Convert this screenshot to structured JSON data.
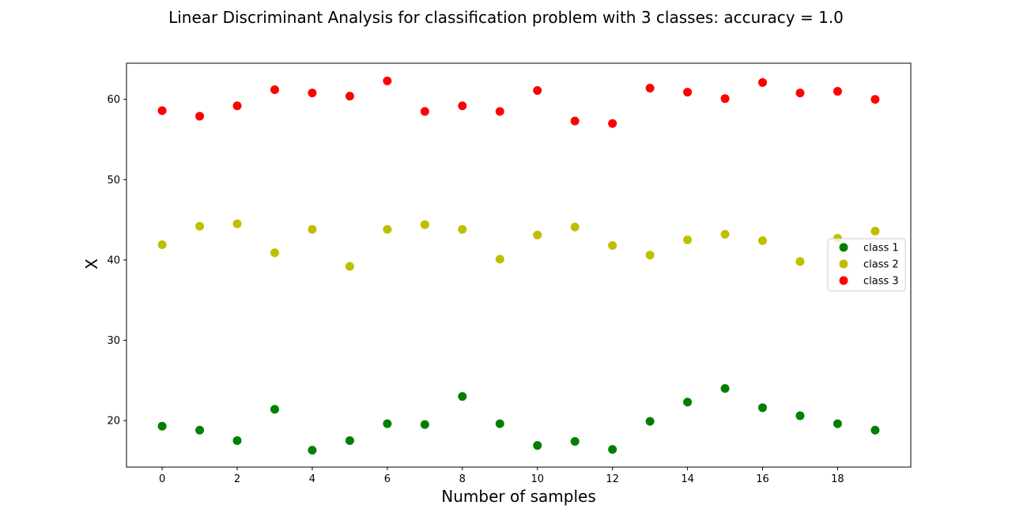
{
  "chart_data": {
    "type": "scatter",
    "title": "Linear Discriminant Analysis for classification problem with 3 classes: accuracy = 1.0",
    "xlabel": "Number of samples",
    "ylabel": "X",
    "xlim": [
      -0.95,
      19.95
    ],
    "ylim": [
      14.2,
      64.5
    ],
    "xticks": [
      0,
      2,
      4,
      6,
      8,
      10,
      12,
      14,
      16,
      18
    ],
    "yticks": [
      20,
      30,
      40,
      50,
      60
    ],
    "grid": false,
    "legend_position": "center-right",
    "x": [
      0,
      1,
      2,
      3,
      4,
      5,
      6,
      7,
      8,
      9,
      10,
      11,
      12,
      13,
      14,
      15,
      16,
      17,
      18,
      19
    ],
    "series": [
      {
        "name": "class 1",
        "color": "#008000",
        "values": [
          19.3,
          18.8,
          17.5,
          21.4,
          16.3,
          17.5,
          19.6,
          19.5,
          23.0,
          19.6,
          16.9,
          17.4,
          16.4,
          19.9,
          22.3,
          24.0,
          21.6,
          20.6,
          19.6,
          18.8
        ]
      },
      {
        "name": "class 2",
        "color": "#bfbf00",
        "values": [
          41.9,
          44.2,
          44.5,
          40.9,
          43.8,
          39.2,
          43.8,
          44.4,
          43.8,
          40.1,
          43.1,
          44.1,
          41.8,
          40.6,
          42.5,
          43.2,
          42.4,
          39.8,
          42.7,
          43.6
        ]
      },
      {
        "name": "class 3",
        "color": "#ff0000",
        "values": [
          58.6,
          57.9,
          59.2,
          61.2,
          60.8,
          60.4,
          62.3,
          58.5,
          59.2,
          58.5,
          61.1,
          57.3,
          57.0,
          61.4,
          60.9,
          60.1,
          62.1,
          60.8,
          61.0,
          60.0
        ]
      }
    ]
  }
}
